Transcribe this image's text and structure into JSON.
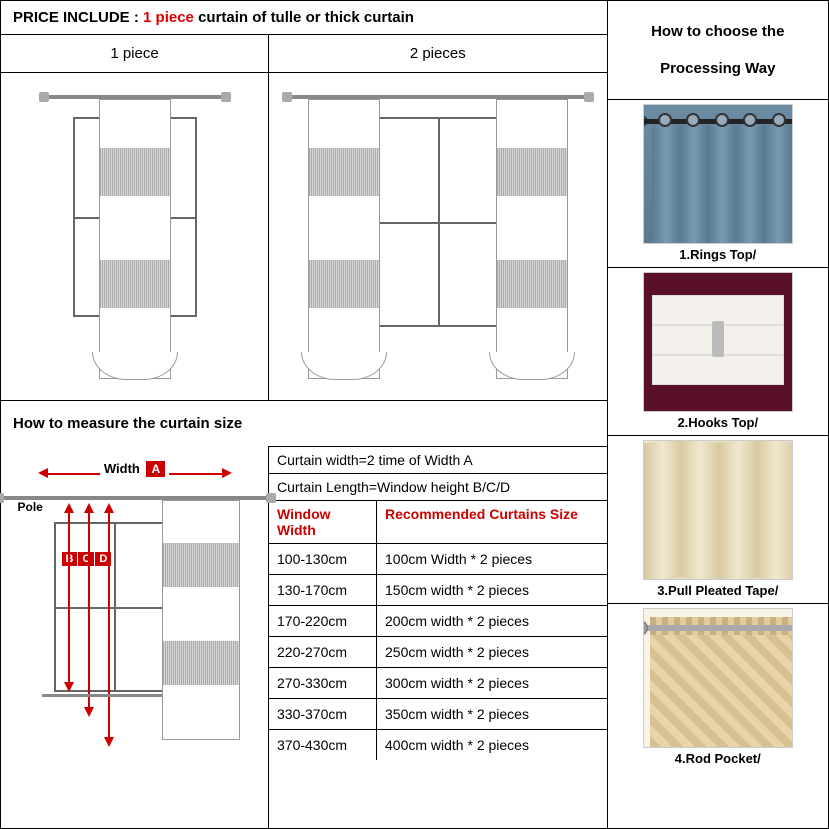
{
  "price_include": {
    "label": "PRICE INCLUDE :",
    "qty": "1 piece",
    "suffix": " curtain of tulle or thick curtain"
  },
  "pieces": {
    "one_label": "1 piece",
    "two_label": "2 pieces"
  },
  "measure": {
    "title": "How to measure the curtain size",
    "width_label": "Width",
    "width_badge": "A",
    "pole_label": "Pole",
    "bcd": [
      "B",
      "C",
      "D"
    ],
    "formula_width": "Curtain width=2 time of Width A",
    "formula_length": "Curtain Length=Window height B/C/D",
    "header_window": "Window Width",
    "header_rec": "Recommended Curtains Size",
    "rows": [
      {
        "w": "100-130cm",
        "r": "100cm Width * 2 pieces"
      },
      {
        "w": "130-170cm",
        "r": "150cm width * 2 pieces"
      },
      {
        "w": "170-220cm",
        "r": "200cm width * 2 pieces"
      },
      {
        "w": "220-270cm",
        "r": "250cm width * 2 pieces"
      },
      {
        "w": "270-330cm",
        "r": "300cm width * 2 pieces"
      },
      {
        "w": "330-370cm",
        "r": "350cm width * 2 pieces"
      },
      {
        "w": "370-430cm",
        "r": "400cm width * 2 pieces"
      }
    ]
  },
  "processing": {
    "title_line1": "How to choose the",
    "title_line2": "Processing Way",
    "items": [
      {
        "label": "1.Rings Top/"
      },
      {
        "label": "2.Hooks Top/"
      },
      {
        "label": "3.Pull Pleated Tape/"
      },
      {
        "label": "4.Rod Pocket/"
      }
    ]
  },
  "colors": {
    "accent_red": "#cc0000",
    "border": "#000000",
    "curtain_blue": "#6b8ba3",
    "curtain_maroon": "#5a1028",
    "curtain_cream": "#e8d4a8"
  }
}
